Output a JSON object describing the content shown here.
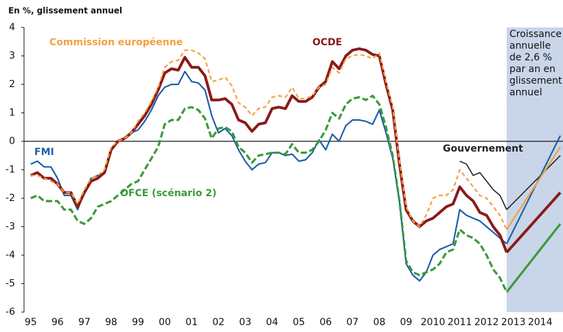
{
  "chart_data": {
    "type": "line",
    "title": "En %, glissement annuel",
    "annotation": [
      "Croissance",
      "annuelle",
      "de 2,6 %",
      "par an en",
      "glissement",
      "annuel"
    ],
    "shaded_region": [
      2012.75,
      2014.85
    ],
    "shade_color": "#c9d5e8",
    "xlim": [
      1994.75,
      2014.85
    ],
    "xticks": [
      {
        "value": 1995,
        "label": "95"
      },
      {
        "value": 1996,
        "label": "96"
      },
      {
        "value": 1997,
        "label": "97"
      },
      {
        "value": 1998,
        "label": "98"
      },
      {
        "value": 1999,
        "label": "99"
      },
      {
        "value": 2000,
        "label": "00"
      },
      {
        "value": 2001,
        "label": "01"
      },
      {
        "value": 2002,
        "label": "02"
      },
      {
        "value": 2003,
        "label": "03"
      },
      {
        "value": 2004,
        "label": "04"
      },
      {
        "value": 2005,
        "label": "05"
      },
      {
        "value": 2006,
        "label": "06"
      },
      {
        "value": 2007,
        "label": "07"
      },
      {
        "value": 2008,
        "label": "08"
      },
      {
        "value": 2009,
        "label": "09"
      },
      2010,
      2011,
      2012,
      2013,
      2014
    ],
    "ylim": [
      -6,
      4
    ],
    "yticks": [
      4,
      3,
      2,
      1,
      0,
      -1,
      -2,
      -3,
      -4,
      -5,
      -6
    ],
    "x": [
      1995,
      1995.25,
      1995.5,
      1995.75,
      1996,
      1996.25,
      1996.5,
      1996.75,
      1997,
      1997.25,
      1997.5,
      1997.75,
      1998,
      1998.25,
      1998.5,
      1998.75,
      1999,
      1999.25,
      1999.5,
      1999.75,
      2000,
      2000.25,
      2000.5,
      2000.75,
      2001,
      2001.25,
      2001.5,
      2001.75,
      2002,
      2002.25,
      2002.5,
      2002.75,
      2003,
      2003.25,
      2003.5,
      2003.75,
      2004,
      2004.25,
      2004.5,
      2004.75,
      2005,
      2005.25,
      2005.5,
      2005.75,
      2006,
      2006.25,
      2006.5,
      2006.75,
      2007,
      2007.25,
      2007.5,
      2007.75,
      2008,
      2008.25,
      2008.5,
      2008.75,
      2009,
      2009.25,
      2009.5,
      2009.75,
      2010,
      2010.25,
      2010.5,
      2010.75,
      2011,
      2011.25,
      2011.5,
      2011.75,
      2012,
      2012.25,
      2012.5,
      2012.75,
      2014.75
    ],
    "series": [
      {
        "name": "Gouvernement",
        "color": "#222222",
        "width": 1.6,
        "dashed": false,
        "values": [
          null,
          null,
          null,
          null,
          null,
          null,
          null,
          null,
          null,
          null,
          null,
          null,
          null,
          null,
          null,
          null,
          null,
          null,
          null,
          null,
          null,
          null,
          null,
          null,
          null,
          null,
          null,
          null,
          null,
          null,
          null,
          null,
          null,
          null,
          null,
          null,
          null,
          null,
          null,
          null,
          null,
          null,
          null,
          null,
          null,
          null,
          null,
          null,
          null,
          null,
          null,
          null,
          null,
          null,
          null,
          null,
          null,
          null,
          null,
          null,
          null,
          null,
          null,
          null,
          -0.7,
          -0.8,
          -1.2,
          -1.1,
          -1.4,
          -1.7,
          -1.9,
          -2.4,
          -0.5
        ]
      },
      {
        "name": "FMI",
        "color": "#1f5fa8",
        "width": 2.2,
        "dashed": false,
        "values": [
          -0.8,
          -0.7,
          -0.9,
          -0.9,
          -1.3,
          -1.9,
          -1.9,
          -2.4,
          -1.8,
          -1.3,
          -1.2,
          -1.1,
          -0.3,
          0.0,
          0.1,
          0.3,
          0.4,
          0.7,
          1.1,
          1.6,
          1.9,
          2.0,
          2.0,
          2.45,
          2.1,
          2.05,
          1.8,
          0.9,
          0.3,
          0.45,
          0.2,
          -0.3,
          -0.7,
          -1.0,
          -0.8,
          -0.75,
          -0.4,
          -0.4,
          -0.5,
          -0.45,
          -0.7,
          -0.65,
          -0.4,
          0.05,
          -0.3,
          0.25,
          0.0,
          0.55,
          0.75,
          0.75,
          0.7,
          0.6,
          1.1,
          0.3,
          -0.6,
          -2.1,
          -4.3,
          -4.7,
          -4.9,
          -4.6,
          -4.0,
          -3.8,
          -3.7,
          -3.6,
          -2.4,
          -2.6,
          -2.7,
          -2.8,
          -3.0,
          -3.2,
          -3.4,
          -3.6,
          0.2
        ]
      },
      {
        "name": "OFCE (scénario 2)",
        "color": "#3a9a3a",
        "width": 3.2,
        "dashed": true,
        "values": [
          -2.0,
          -1.9,
          -2.1,
          -2.1,
          -2.1,
          -2.4,
          -2.4,
          -2.8,
          -2.9,
          -2.7,
          -2.3,
          -2.2,
          -2.1,
          -1.9,
          -1.7,
          -1.5,
          -1.4,
          -1.0,
          -0.6,
          -0.2,
          0.6,
          0.75,
          0.75,
          1.15,
          1.2,
          1.1,
          0.8,
          0.1,
          0.45,
          0.5,
          0.35,
          -0.2,
          -0.4,
          -0.75,
          -0.5,
          -0.45,
          -0.4,
          -0.4,
          -0.45,
          -0.1,
          -0.4,
          -0.4,
          -0.3,
          0.0,
          0.4,
          1.0,
          0.8,
          1.3,
          1.5,
          1.55,
          1.45,
          1.6,
          1.3,
          0.5,
          -0.5,
          -2.1,
          -4.2,
          -4.6,
          -4.7,
          -4.6,
          -4.5,
          -4.3,
          -3.9,
          -3.8,
          -3.1,
          -3.3,
          -3.4,
          -3.6,
          -4.0,
          -4.5,
          -4.8,
          -5.3,
          -2.9
        ]
      },
      {
        "name": "OCDE",
        "color": "#8b1a1a",
        "width": 4,
        "dashed": false,
        "values": [
          -1.2,
          -1.1,
          -1.3,
          -1.3,
          -1.5,
          -1.8,
          -1.8,
          -2.3,
          -1.8,
          -1.4,
          -1.3,
          -1.1,
          -0.3,
          0.0,
          0.1,
          0.3,
          0.6,
          0.9,
          1.3,
          1.8,
          2.4,
          2.55,
          2.5,
          2.95,
          2.6,
          2.6,
          2.3,
          1.45,
          1.45,
          1.5,
          1.3,
          0.75,
          0.65,
          0.35,
          0.6,
          0.65,
          1.15,
          1.2,
          1.15,
          1.6,
          1.4,
          1.4,
          1.55,
          1.9,
          2.1,
          2.8,
          2.55,
          3.0,
          3.2,
          3.25,
          3.2,
          3.05,
          3.0,
          2.0,
          1.1,
          -0.8,
          -2.4,
          -2.8,
          -3.0,
          -2.8,
          -2.7,
          -2.5,
          -2.3,
          -2.2,
          -1.6,
          -1.9,
          -2.1,
          -2.5,
          -2.6,
          -3.0,
          -3.3,
          -3.9,
          -1.8
        ]
      },
      {
        "name": "Commission européenne",
        "color": "#f4a040",
        "width": 2.2,
        "dashed": true,
        "values": [
          -1.2,
          -1.2,
          -1.3,
          -1.4,
          -1.5,
          -1.8,
          -1.8,
          -2.2,
          -1.7,
          -1.3,
          -1.2,
          -1.0,
          -0.2,
          0.0,
          0.1,
          0.3,
          0.7,
          1.0,
          1.4,
          1.9,
          2.6,
          2.8,
          2.85,
          3.2,
          3.2,
          3.1,
          2.9,
          2.1,
          2.15,
          2.25,
          1.95,
          1.35,
          1.2,
          0.9,
          1.15,
          1.2,
          1.55,
          1.6,
          1.55,
          1.9,
          1.5,
          1.5,
          1.6,
          1.9,
          2.0,
          2.6,
          2.4,
          2.9,
          3.0,
          3.05,
          3.0,
          2.9,
          3.1,
          2.1,
          1.2,
          -0.7,
          -2.3,
          -2.8,
          -3.0,
          -2.6,
          -2.0,
          -1.9,
          -1.9,
          -1.7,
          -1.0,
          -1.3,
          -1.6,
          -1.9,
          -2.0,
          -2.3,
          -2.6,
          -3.1,
          -0.2
        ]
      }
    ]
  }
}
